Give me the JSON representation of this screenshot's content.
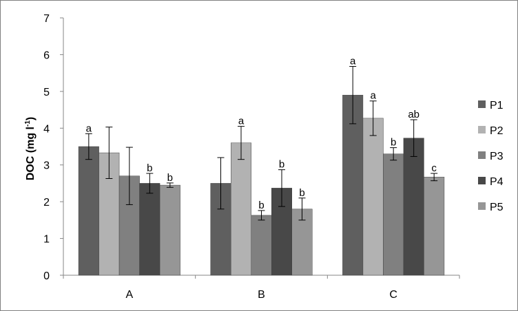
{
  "chart_data": {
    "type": "bar",
    "title": "",
    "xlabel": "",
    "ylabel": "DOC (mg l",
    "ylabel_sup": "-1",
    "ylabel_close": ")",
    "ylim": [
      0,
      7
    ],
    "yticks": [
      0,
      1,
      2,
      3,
      4,
      5,
      6,
      7
    ],
    "grid": false,
    "legend_position": "right",
    "categories": [
      "A",
      "B",
      "C"
    ],
    "series": [
      {
        "name": "P1",
        "color": "#5f5f5f",
        "values": [
          3.5,
          2.5,
          4.9
        ],
        "errors": [
          0.35,
          0.7,
          0.78
        ],
        "labels": [
          "a",
          "",
          "a"
        ]
      },
      {
        "name": "P2",
        "color": "#b2b2b2",
        "values": [
          3.33,
          3.6,
          4.27
        ],
        "errors": [
          0.7,
          0.45,
          0.47
        ],
        "labels": [
          "",
          "a",
          "a"
        ]
      },
      {
        "name": "P3",
        "color": "#808080",
        "values": [
          2.7,
          1.63,
          3.3
        ],
        "errors": [
          0.78,
          0.13,
          0.17
        ],
        "labels": [
          "",
          "b",
          "b"
        ]
      },
      {
        "name": "P4",
        "color": "#484848",
        "values": [
          2.5,
          2.37,
          3.73
        ],
        "errors": [
          0.27,
          0.5,
          0.5
        ],
        "labels": [
          "b",
          "b",
          "ab"
        ]
      },
      {
        "name": "P5",
        "color": "#969696",
        "values": [
          2.45,
          1.8,
          2.67
        ],
        "errors": [
          0.06,
          0.3,
          0.1
        ],
        "labels": [
          "b",
          "b",
          "c"
        ]
      }
    ]
  }
}
